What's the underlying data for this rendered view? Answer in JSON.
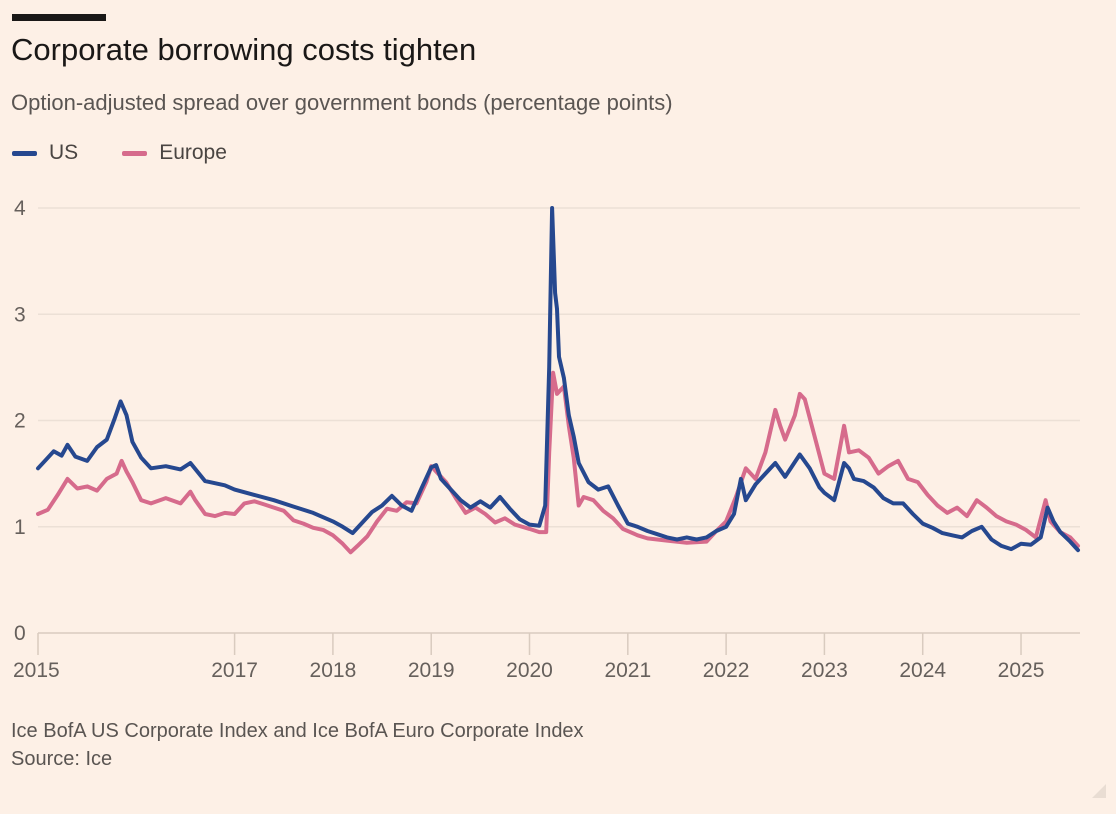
{
  "header": {
    "title": "Corporate borrowing costs tighten",
    "subtitle": "Option-adjusted spread over government bonds (percentage points)"
  },
  "legend": [
    {
      "label": "US",
      "color": "#26488f"
    },
    {
      "label": "Europe",
      "color": "#d66b8c"
    }
  ],
  "footer": {
    "note": "Ice BofA US Corporate Index and Ice BofA Euro Corporate Index",
    "source": "Source: Ice"
  },
  "chart_data": {
    "type": "line",
    "title": "Corporate borrowing costs tighten",
    "subtitle": "Option-adjusted spread over government bonds (percentage points)",
    "xlabel": "",
    "ylabel": "",
    "xlim": [
      2015.0,
      2025.6
    ],
    "ylim": [
      0,
      4
    ],
    "yticks": [
      0,
      1,
      2,
      3,
      4
    ],
    "xticks": [
      2015,
      2017,
      2018,
      2019,
      2020,
      2021,
      2022,
      2023,
      2024,
      2025
    ],
    "grid": "horizontal",
    "legend_position": "top-left",
    "series": [
      {
        "name": "US",
        "color": "#26488f",
        "points": [
          [
            2015.0,
            1.55
          ],
          [
            2015.08,
            1.63
          ],
          [
            2015.16,
            1.71
          ],
          [
            2015.24,
            1.67
          ],
          [
            2015.3,
            1.77
          ],
          [
            2015.38,
            1.66
          ],
          [
            2015.5,
            1.62
          ],
          [
            2015.6,
            1.75
          ],
          [
            2015.7,
            1.82
          ],
          [
            2015.78,
            2.02
          ],
          [
            2015.84,
            2.18
          ],
          [
            2015.9,
            2.05
          ],
          [
            2015.96,
            1.8
          ],
          [
            2016.05,
            1.65
          ],
          [
            2016.15,
            1.55
          ],
          [
            2016.3,
            1.57
          ],
          [
            2016.45,
            1.54
          ],
          [
            2016.55,
            1.6
          ],
          [
            2016.7,
            1.43
          ],
          [
            2016.9,
            1.39
          ],
          [
            2017.0,
            1.35
          ],
          [
            2017.2,
            1.3
          ],
          [
            2017.4,
            1.25
          ],
          [
            2017.6,
            1.19
          ],
          [
            2017.8,
            1.13
          ],
          [
            2018.0,
            1.05
          ],
          [
            2018.1,
            1.0
          ],
          [
            2018.2,
            0.94
          ],
          [
            2018.3,
            1.04
          ],
          [
            2018.4,
            1.14
          ],
          [
            2018.5,
            1.2
          ],
          [
            2018.6,
            1.29
          ],
          [
            2018.7,
            1.2
          ],
          [
            2018.8,
            1.15
          ],
          [
            2018.9,
            1.36
          ],
          [
            2019.0,
            1.56
          ],
          [
            2019.05,
            1.58
          ],
          [
            2019.1,
            1.45
          ],
          [
            2019.2,
            1.35
          ],
          [
            2019.3,
            1.25
          ],
          [
            2019.4,
            1.18
          ],
          [
            2019.5,
            1.24
          ],
          [
            2019.6,
            1.18
          ],
          [
            2019.7,
            1.28
          ],
          [
            2019.8,
            1.17
          ],
          [
            2019.9,
            1.07
          ],
          [
            2020.0,
            1.02
          ],
          [
            2020.1,
            1.01
          ],
          [
            2020.16,
            1.2
          ],
          [
            2020.2,
            2.5
          ],
          [
            2020.23,
            4.0
          ],
          [
            2020.26,
            3.2
          ],
          [
            2020.28,
            3.05
          ],
          [
            2020.3,
            2.6
          ],
          [
            2020.35,
            2.4
          ],
          [
            2020.4,
            2.05
          ],
          [
            2020.45,
            1.85
          ],
          [
            2020.5,
            1.6
          ],
          [
            2020.6,
            1.42
          ],
          [
            2020.7,
            1.35
          ],
          [
            2020.8,
            1.38
          ],
          [
            2020.9,
            1.2
          ],
          [
            2021.0,
            1.03
          ],
          [
            2021.1,
            1.0
          ],
          [
            2021.2,
            0.96
          ],
          [
            2021.3,
            0.93
          ],
          [
            2021.4,
            0.9
          ],
          [
            2021.5,
            0.88
          ],
          [
            2021.6,
            0.9
          ],
          [
            2021.7,
            0.88
          ],
          [
            2021.8,
            0.9
          ],
          [
            2021.9,
            0.96
          ],
          [
            2022.0,
            1.0
          ],
          [
            2022.08,
            1.12
          ],
          [
            2022.15,
            1.45
          ],
          [
            2022.2,
            1.25
          ],
          [
            2022.3,
            1.4
          ],
          [
            2022.4,
            1.5
          ],
          [
            2022.5,
            1.6
          ],
          [
            2022.6,
            1.47
          ],
          [
            2022.75,
            1.68
          ],
          [
            2022.85,
            1.55
          ],
          [
            2022.95,
            1.37
          ],
          [
            2023.0,
            1.32
          ],
          [
            2023.1,
            1.25
          ],
          [
            2023.2,
            1.6
          ],
          [
            2023.25,
            1.55
          ],
          [
            2023.3,
            1.45
          ],
          [
            2023.4,
            1.43
          ],
          [
            2023.5,
            1.37
          ],
          [
            2023.6,
            1.27
          ],
          [
            2023.7,
            1.22
          ],
          [
            2023.8,
            1.22
          ],
          [
            2023.9,
            1.12
          ],
          [
            2024.0,
            1.03
          ],
          [
            2024.1,
            0.99
          ],
          [
            2024.2,
            0.94
          ],
          [
            2024.3,
            0.92
          ],
          [
            2024.4,
            0.9
          ],
          [
            2024.5,
            0.96
          ],
          [
            2024.6,
            1.0
          ],
          [
            2024.7,
            0.88
          ],
          [
            2024.8,
            0.82
          ],
          [
            2024.9,
            0.79
          ],
          [
            2025.0,
            0.84
          ],
          [
            2025.1,
            0.83
          ],
          [
            2025.2,
            0.9
          ],
          [
            2025.27,
            1.18
          ],
          [
            2025.33,
            1.05
          ],
          [
            2025.4,
            0.95
          ],
          [
            2025.5,
            0.86
          ],
          [
            2025.58,
            0.78
          ]
        ]
      },
      {
        "name": "Europe",
        "color": "#d66b8c",
        "points": [
          [
            2015.0,
            1.12
          ],
          [
            2015.1,
            1.16
          ],
          [
            2015.2,
            1.3
          ],
          [
            2015.3,
            1.45
          ],
          [
            2015.4,
            1.36
          ],
          [
            2015.5,
            1.38
          ],
          [
            2015.6,
            1.34
          ],
          [
            2015.7,
            1.45
          ],
          [
            2015.8,
            1.5
          ],
          [
            2015.85,
            1.62
          ],
          [
            2015.9,
            1.52
          ],
          [
            2015.96,
            1.42
          ],
          [
            2016.05,
            1.25
          ],
          [
            2016.15,
            1.22
          ],
          [
            2016.3,
            1.27
          ],
          [
            2016.45,
            1.22
          ],
          [
            2016.55,
            1.33
          ],
          [
            2016.6,
            1.25
          ],
          [
            2016.7,
            1.12
          ],
          [
            2016.8,
            1.1
          ],
          [
            2016.9,
            1.13
          ],
          [
            2017.0,
            1.12
          ],
          [
            2017.1,
            1.22
          ],
          [
            2017.2,
            1.24
          ],
          [
            2017.3,
            1.21
          ],
          [
            2017.4,
            1.18
          ],
          [
            2017.5,
            1.15
          ],
          [
            2017.6,
            1.06
          ],
          [
            2017.7,
            1.03
          ],
          [
            2017.8,
            0.99
          ],
          [
            2017.9,
            0.97
          ],
          [
            2018.0,
            0.92
          ],
          [
            2018.1,
            0.84
          ],
          [
            2018.18,
            0.76
          ],
          [
            2018.25,
            0.82
          ],
          [
            2018.35,
            0.91
          ],
          [
            2018.45,
            1.05
          ],
          [
            2018.55,
            1.17
          ],
          [
            2018.65,
            1.15
          ],
          [
            2018.75,
            1.23
          ],
          [
            2018.85,
            1.22
          ],
          [
            2018.95,
            1.42
          ],
          [
            2019.0,
            1.57
          ],
          [
            2019.05,
            1.52
          ],
          [
            2019.15,
            1.42
          ],
          [
            2019.25,
            1.27
          ],
          [
            2019.35,
            1.13
          ],
          [
            2019.45,
            1.18
          ],
          [
            2019.55,
            1.12
          ],
          [
            2019.65,
            1.04
          ],
          [
            2019.75,
            1.08
          ],
          [
            2019.85,
            1.02
          ],
          [
            2020.0,
            0.98
          ],
          [
            2020.1,
            0.95
          ],
          [
            2020.17,
            0.95
          ],
          [
            2020.2,
            1.7
          ],
          [
            2020.24,
            2.45
          ],
          [
            2020.28,
            2.25
          ],
          [
            2020.35,
            2.32
          ],
          [
            2020.4,
            1.95
          ],
          [
            2020.45,
            1.65
          ],
          [
            2020.5,
            1.2
          ],
          [
            2020.55,
            1.28
          ],
          [
            2020.65,
            1.25
          ],
          [
            2020.75,
            1.15
          ],
          [
            2020.85,
            1.08
          ],
          [
            2020.95,
            0.98
          ],
          [
            2021.1,
            0.92
          ],
          [
            2021.2,
            0.89
          ],
          [
            2021.4,
            0.87
          ],
          [
            2021.6,
            0.85
          ],
          [
            2021.8,
            0.86
          ],
          [
            2021.9,
            0.96
          ],
          [
            2022.0,
            1.05
          ],
          [
            2022.1,
            1.28
          ],
          [
            2022.2,
            1.55
          ],
          [
            2022.3,
            1.45
          ],
          [
            2022.4,
            1.7
          ],
          [
            2022.5,
            2.1
          ],
          [
            2022.55,
            1.95
          ],
          [
            2022.6,
            1.82
          ],
          [
            2022.7,
            2.05
          ],
          [
            2022.75,
            2.25
          ],
          [
            2022.8,
            2.2
          ],
          [
            2022.9,
            1.85
          ],
          [
            2023.0,
            1.5
          ],
          [
            2023.1,
            1.45
          ],
          [
            2023.2,
            1.95
          ],
          [
            2023.25,
            1.7
          ],
          [
            2023.35,
            1.72
          ],
          [
            2023.45,
            1.65
          ],
          [
            2023.55,
            1.5
          ],
          [
            2023.65,
            1.57
          ],
          [
            2023.75,
            1.62
          ],
          [
            2023.85,
            1.45
          ],
          [
            2023.95,
            1.42
          ],
          [
            2024.05,
            1.3
          ],
          [
            2024.15,
            1.2
          ],
          [
            2024.25,
            1.13
          ],
          [
            2024.35,
            1.18
          ],
          [
            2024.45,
            1.1
          ],
          [
            2024.55,
            1.25
          ],
          [
            2024.65,
            1.18
          ],
          [
            2024.75,
            1.1
          ],
          [
            2024.85,
            1.05
          ],
          [
            2024.95,
            1.02
          ],
          [
            2025.05,
            0.97
          ],
          [
            2025.15,
            0.9
          ],
          [
            2025.25,
            1.25
          ],
          [
            2025.3,
            1.05
          ],
          [
            2025.4,
            0.95
          ],
          [
            2025.5,
            0.9
          ],
          [
            2025.58,
            0.82
          ]
        ]
      }
    ]
  }
}
